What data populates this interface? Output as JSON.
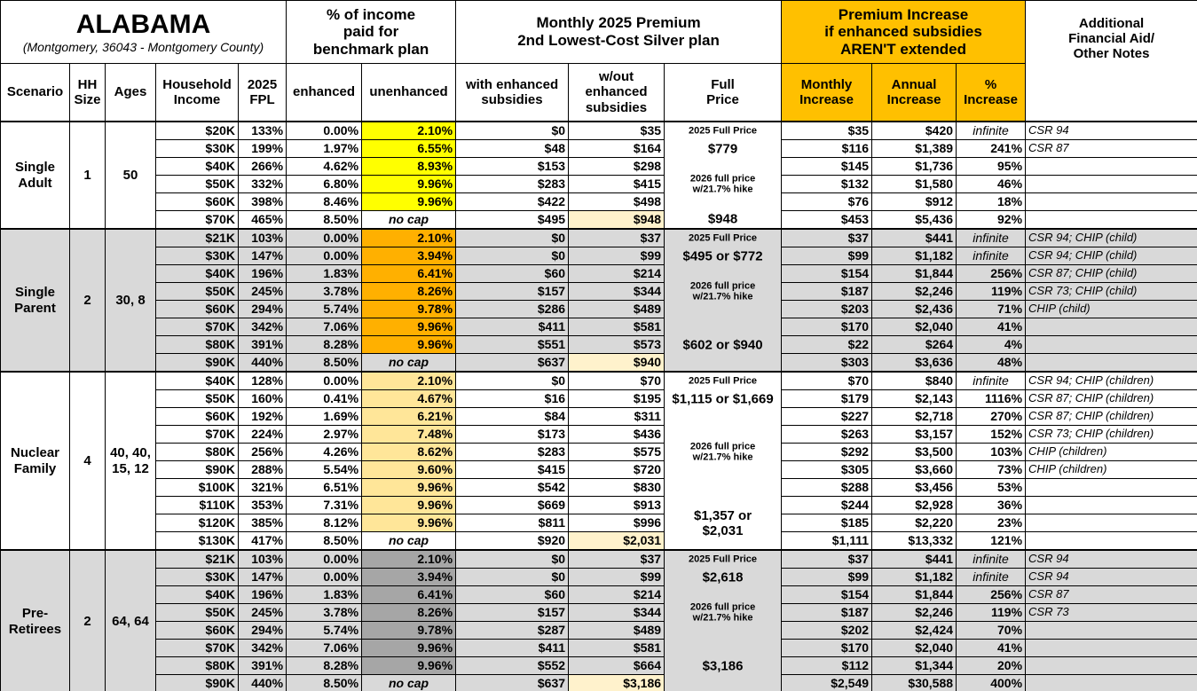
{
  "header": {
    "title": "ALABAMA",
    "subtitle": "(Montgomery, 36043 - Montgomery County)",
    "income_group": "% of income\npaid for\nbenchmark plan",
    "premium_group": "Monthly 2025 Premium\n2nd Lowest-Cost Silver plan",
    "increase_group": "Premium Increase\nif enhanced subsidies\nAREN'T extended",
    "notes": "Additional\nFinancial Aid/\nOther Notes",
    "columns": [
      "Scenario",
      "HH\nSize",
      "Ages",
      "Household\nIncome",
      "2025\nFPL",
      "enhanced",
      "unenhanced",
      "with enhanced\nsubsidies",
      "w/out\nenhanced\nsubsidies",
      "Full\nPrice",
      "Monthly\nIncrease",
      "Annual\nIncrease",
      "%\nIncrease"
    ]
  },
  "colors": {
    "increase_header": "#ffc000",
    "highlight": "#fff2cc"
  },
  "groups": [
    {
      "scenario": "Single\nAdult",
      "hh_size": "1",
      "ages": "50",
      "background": "#ffffff",
      "unenhanced_color": "#ffff00",
      "rows": [
        [
          "$20K",
          "133%",
          "0.00%",
          "2.10%",
          "$0",
          "$35",
          "2025 Full Price",
          "$35",
          "$420",
          "infinite",
          "CSR 94"
        ],
        [
          "$30K",
          "199%",
          "1.97%",
          "6.55%",
          "$48",
          "$164",
          "$779",
          "$116",
          "$1,389",
          "241%",
          "CSR 87"
        ],
        [
          "$40K",
          "266%",
          "4.62%",
          "8.93%",
          "$153",
          "$298",
          null,
          "$145",
          "$1,736",
          "95%",
          null
        ],
        [
          "$50K",
          "332%",
          "6.80%",
          "9.96%",
          "$283",
          "$415",
          "2026 full price w/21.7% hike",
          "$132",
          "$1,580",
          "46%",
          null
        ],
        [
          "$60K",
          "398%",
          "8.46%",
          "9.96%",
          "$422",
          "$498",
          null,
          "$76",
          "$912",
          "18%",
          null
        ],
        [
          "$70K",
          "465%",
          "8.50%",
          "no cap",
          "$495",
          "$948",
          "$948",
          "$453",
          "$5,436",
          "92%",
          null
        ]
      ]
    },
    {
      "scenario": "Single\nParent",
      "hh_size": "2",
      "ages": "30, 8",
      "background": "#d9d9d9",
      "unenhanced_color": "#ffb000",
      "rows": [
        [
          "$21K",
          "103%",
          "0.00%",
          "2.10%",
          "$0",
          "$37",
          "2025 Full Price",
          "$37",
          "$441",
          "infinite",
          "CSR 94; CHIP (child)"
        ],
        [
          "$30K",
          "147%",
          "0.00%",
          "3.94%",
          "$0",
          "$99",
          "$495 or $772",
          "$99",
          "$1,182",
          "infinite",
          "CSR 94; CHIP (child)"
        ],
        [
          "$40K",
          "196%",
          "1.83%",
          "6.41%",
          "$60",
          "$214",
          null,
          "$154",
          "$1,844",
          "256%",
          "CSR 87; CHIP (child)"
        ],
        [
          "$50K",
          "245%",
          "3.78%",
          "8.26%",
          "$157",
          "$344",
          "2026 full price w/21.7% hike",
          "$187",
          "$2,246",
          "119%",
          "CSR 73; CHIP (child)"
        ],
        [
          "$60K",
          "294%",
          "5.74%",
          "9.78%",
          "$286",
          "$489",
          null,
          "$203",
          "$2,436",
          "71%",
          "CHIP (child)"
        ],
        [
          "$70K",
          "342%",
          "7.06%",
          "9.96%",
          "$411",
          "$581",
          null,
          "$170",
          "$2,040",
          "41%",
          null
        ],
        [
          "$80K",
          "391%",
          "8.28%",
          "9.96%",
          "$551",
          "$573",
          "$602 or $940",
          "$22",
          "$264",
          "4%",
          null
        ],
        [
          "$90K",
          "440%",
          "8.50%",
          "no cap",
          "$637",
          "$940",
          null,
          "$303",
          "$3,636",
          "48%",
          null
        ]
      ]
    },
    {
      "scenario": "Nuclear\nFamily",
      "hh_size": "4",
      "ages": "40, 40,\n15, 12",
      "background": "#ffffff",
      "unenhanced_color": "#ffe699",
      "rows": [
        [
          "$40K",
          "128%",
          "0.00%",
          "2.10%",
          "$0",
          "$70",
          "2025 Full Price",
          "$70",
          "$840",
          "infinite",
          "CSR 94; CHIP (children)"
        ],
        [
          "$50K",
          "160%",
          "0.41%",
          "4.67%",
          "$16",
          "$195",
          "$1,115 or $1,669",
          "$179",
          "$2,143",
          "1116%",
          "CSR 87; CHIP (children)"
        ],
        [
          "$60K",
          "192%",
          "1.69%",
          "6.21%",
          "$84",
          "$311",
          null,
          "$227",
          "$2,718",
          "270%",
          "CSR 87; CHIP (children)"
        ],
        [
          "$70K",
          "224%",
          "2.97%",
          "7.48%",
          "$173",
          "$436",
          null,
          "$263",
          "$3,157",
          "152%",
          "CSR 73; CHIP (children)"
        ],
        [
          "$80K",
          "256%",
          "4.26%",
          "8.62%",
          "$283",
          "$575",
          "2026 full price w/21.7% hike",
          "$292",
          "$3,500",
          "103%",
          "CHIP (children)"
        ],
        [
          "$90K",
          "288%",
          "5.54%",
          "9.60%",
          "$415",
          "$720",
          null,
          "$305",
          "$3,660",
          "73%",
          "CHIP (children)"
        ],
        [
          "$100K",
          "321%",
          "6.51%",
          "9.96%",
          "$542",
          "$830",
          null,
          "$288",
          "$3,456",
          "53%",
          null
        ],
        [
          "$110K",
          "353%",
          "7.31%",
          "9.96%",
          "$669",
          "$913",
          null,
          "$244",
          "$2,928",
          "36%",
          null
        ],
        [
          "$120K",
          "385%",
          "8.12%",
          "9.96%",
          "$811",
          "$996",
          "$1,357 or $2,031",
          "$185",
          "$2,220",
          "23%",
          null
        ],
        [
          "$130K",
          "417%",
          "8.50%",
          "no cap",
          "$920",
          "$2,031",
          null,
          "$1,111",
          "$13,332",
          "121%",
          null
        ]
      ]
    },
    {
      "scenario": "Pre-\nRetirees",
      "hh_size": "2",
      "ages": "64, 64",
      "background": "#d9d9d9",
      "unenhanced_color": "#a6a6a6",
      "rows": [
        [
          "$21K",
          "103%",
          "0.00%",
          "2.10%",
          "$0",
          "$37",
          "2025 Full Price",
          "$37",
          "$441",
          "infinite",
          "CSR 94"
        ],
        [
          "$30K",
          "147%",
          "0.00%",
          "3.94%",
          "$0",
          "$99",
          "$2,618",
          "$99",
          "$1,182",
          "infinite",
          "CSR 94"
        ],
        [
          "$40K",
          "196%",
          "1.83%",
          "6.41%",
          "$60",
          "$214",
          null,
          "$154",
          "$1,844",
          "256%",
          "CSR 87"
        ],
        [
          "$50K",
          "245%",
          "3.78%",
          "8.26%",
          "$157",
          "$344",
          "2026 full price w/21.7% hike",
          "$187",
          "$2,246",
          "119%",
          "CSR 73"
        ],
        [
          "$60K",
          "294%",
          "5.74%",
          "9.78%",
          "$287",
          "$489",
          null,
          "$202",
          "$2,424",
          "70%",
          null
        ],
        [
          "$70K",
          "342%",
          "7.06%",
          "9.96%",
          "$411",
          "$581",
          null,
          "$170",
          "$2,040",
          "41%",
          null
        ],
        [
          "$80K",
          "391%",
          "8.28%",
          "9.96%",
          "$552",
          "$664",
          "$3,186",
          "$112",
          "$1,344",
          "20%",
          null
        ],
        [
          "$90K",
          "440%",
          "8.50%",
          "no cap",
          "$637",
          "$3,186",
          null,
          "$2,549",
          "$30,588",
          "400%",
          null
        ]
      ]
    }
  ]
}
